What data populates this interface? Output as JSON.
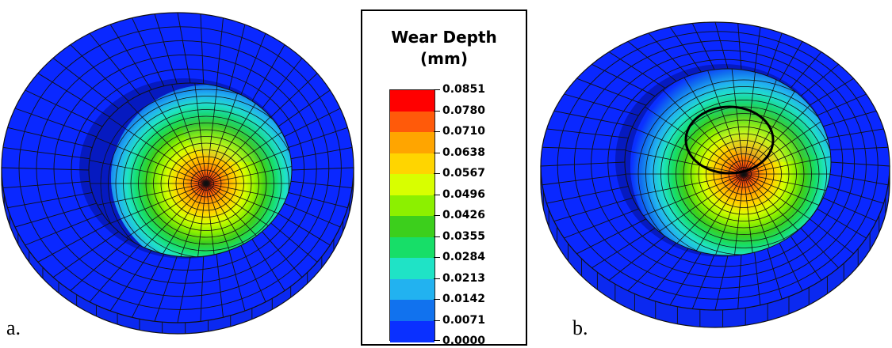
{
  "figure": {
    "panel_a_label": "a.",
    "panel_b_label": "b."
  },
  "legend": {
    "title_line1": "Wear Depth",
    "title_line2": "(mm)",
    "values": [
      "0.0851",
      "0.0780",
      "0.0710",
      "0.0638",
      "0.0567",
      "0.0496",
      "0.0426",
      "0.0355",
      "0.0284",
      "0.0213",
      "0.0142",
      "0.0071",
      "0.0000"
    ],
    "colors": [
      "#ff0000",
      "#ff5a0a",
      "#ffa500",
      "#ffd500",
      "#d8ff00",
      "#8cf000",
      "#3ccf1c",
      "#17de68",
      "#1fe3c6",
      "#22b2f0",
      "#1172ee",
      "#0a30ff"
    ],
    "base_color": "#0a28ff"
  },
  "colors": {
    "background": "#ffffff",
    "mesh_line": "#111111",
    "marker_ring": "#000000"
  }
}
